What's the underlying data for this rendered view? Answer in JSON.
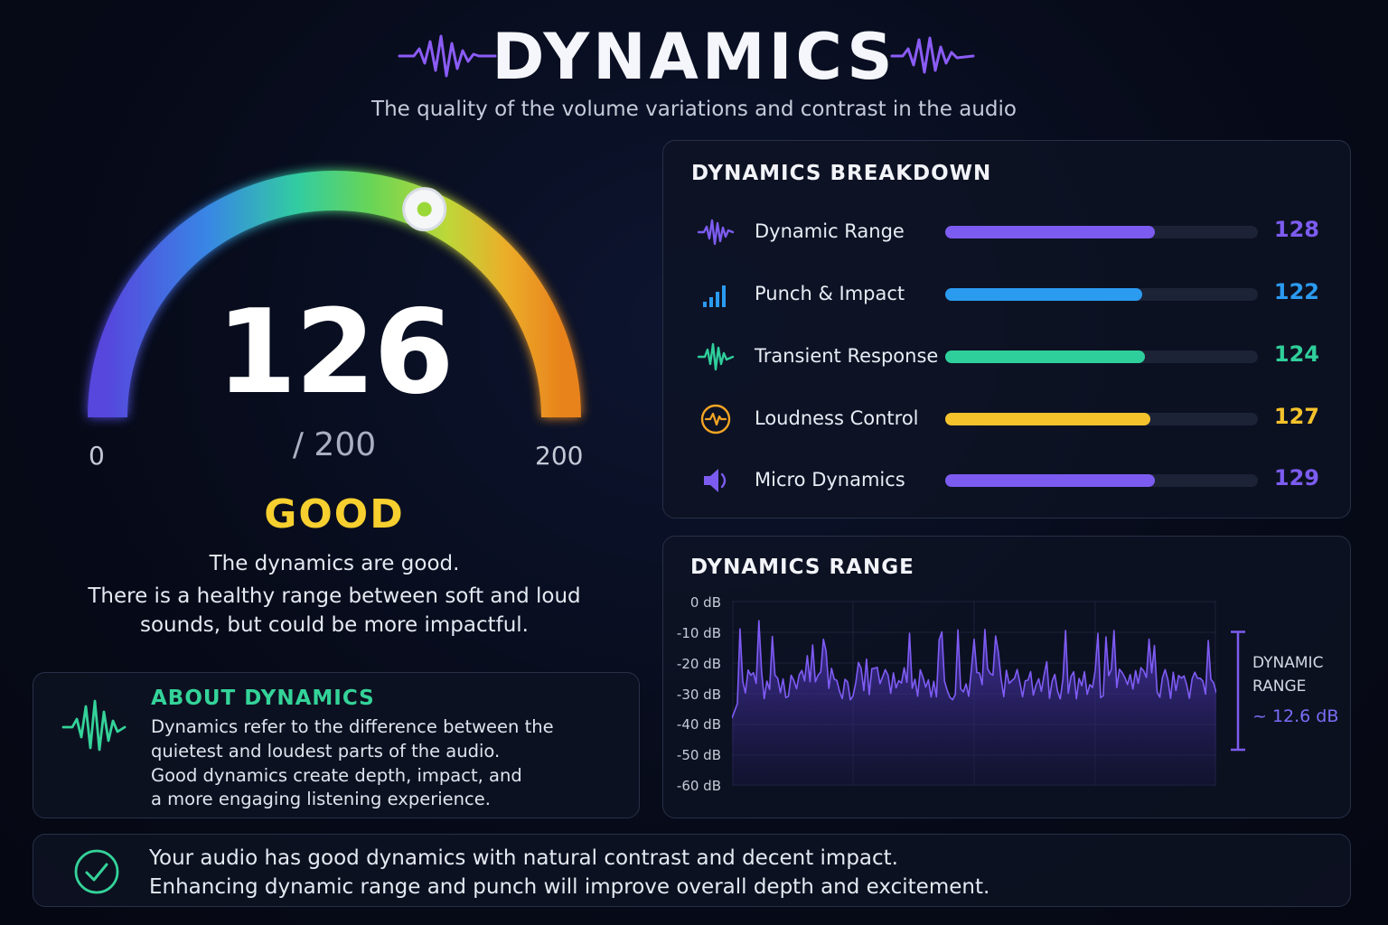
{
  "header": {
    "title": "DYNAMICS",
    "subtitle": "The quality of the volume variations and contrast in the audio"
  },
  "gauge": {
    "score": "126",
    "max_label": "/ 200",
    "min_tick": "0",
    "max_tick": "200",
    "value": 126,
    "max": 200,
    "rating": "GOOD",
    "description": [
      "The dynamics are good.",
      "There is a healthy range between soft and loud",
      "sounds, but could be more impactful."
    ]
  },
  "breakdown": {
    "title": "DYNAMICS BREAKDOWN",
    "items": [
      {
        "label": "Dynamic Range",
        "value": "128",
        "fill": 0.67,
        "color": "#7c5cf0",
        "icon": "waveform-icon"
      },
      {
        "label": "Punch & Impact",
        "value": "122",
        "fill": 0.63,
        "color": "#2b9bf0",
        "icon": "signal-bars-icon"
      },
      {
        "label": "Transient Response",
        "value": "124",
        "fill": 0.64,
        "color": "#2fcf9b",
        "icon": "pulse-icon"
      },
      {
        "label": "Loudness Control",
        "value": "127",
        "fill": 0.655,
        "color": "#f5c22c",
        "icon": "heartbeat-circle-icon"
      },
      {
        "label": "Micro Dynamics",
        "value": "129",
        "fill": 0.67,
        "color": "#7c5cf0",
        "icon": "speaker-icon"
      }
    ]
  },
  "range_panel": {
    "title": "DYNAMICS RANGE",
    "y_labels": [
      "0 dB",
      "-10 dB",
      "-20 dB",
      "-30 dB",
      "-40 dB",
      "-50 dB",
      "-60 dB"
    ],
    "annotation_line1": "DYNAMIC",
    "annotation_line2": "RANGE",
    "annotation_value": "~ 12.6 dB"
  },
  "about": {
    "title": "ABOUT DYNAMICS",
    "lines": [
      "Dynamics refer to the difference between the",
      "quietest and loudest parts of the audio.",
      "Good dynamics create depth, impact, and",
      "a more engaging listening experience."
    ]
  },
  "summary": {
    "lines": [
      "Your audio has good dynamics with natural contrast and decent impact.",
      "Enhancing dynamic range and punch will improve overall depth and excitement."
    ]
  },
  "colors": {
    "accent_purple": "#7c5cf0",
    "accent_green": "#34d399",
    "accent_yellow": "#f7cf2f"
  }
}
